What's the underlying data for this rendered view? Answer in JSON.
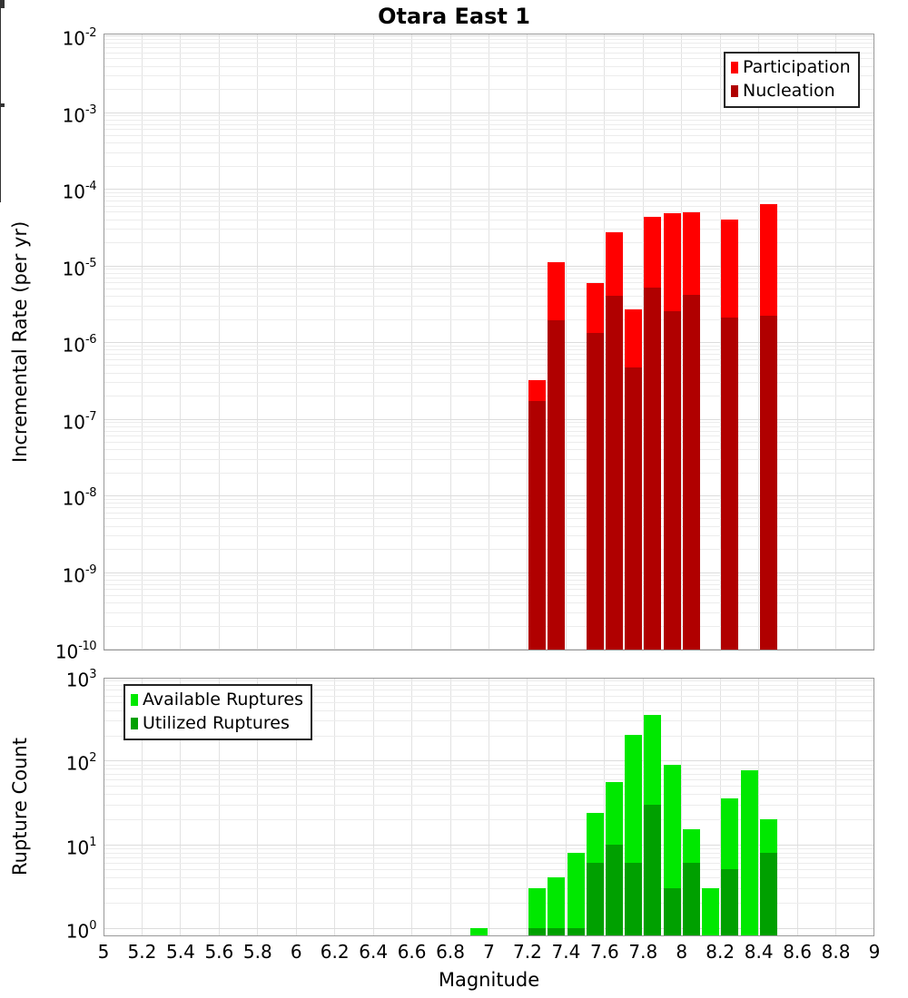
{
  "title": "Otara East 1",
  "xlabel": "Magnitude",
  "x_tick_labels": [
    "5",
    "5.2",
    "5.4",
    "5.6",
    "5.8",
    "6",
    "6.2",
    "6.4",
    "6.6",
    "6.8",
    "7",
    "7.2",
    "7.4",
    "7.6",
    "7.8",
    "8",
    "8.2",
    "8.4",
    "8.6",
    "8.8",
    "9"
  ],
  "chart_data": [
    {
      "type": "bar",
      "title": "Otara East 1",
      "ylabel": "Incremental Rate (per yr)",
      "xlabel": "Magnitude",
      "yscale": "log",
      "ylim": [
        1e-10,
        0.01
      ],
      "xlim": [
        5,
        9
      ],
      "bin_width": 0.1,
      "grid": true,
      "legend_position": "top-right",
      "categories": [
        7.25,
        7.35,
        7.55,
        7.65,
        7.75,
        7.85,
        7.95,
        8.05,
        8.25,
        8.45
      ],
      "series": [
        {
          "name": "Participation",
          "color": "#ff0000",
          "values": [
            3.2e-07,
            1.1e-05,
            5.9e-06,
            2.7e-05,
            2.7e-06,
            4.3e-05,
            4.8e-05,
            4.9e-05,
            4e-05,
            6.3e-05
          ]
        },
        {
          "name": "Nucleation",
          "color": "#b00000",
          "values": [
            1.7e-07,
            1.9e-06,
            1.3e-06,
            4e-06,
            4.6e-07,
            5.1e-06,
            2.5e-06,
            4.1e-06,
            2.1e-06,
            2.2e-06
          ]
        }
      ]
    },
    {
      "type": "bar",
      "title": "",
      "ylabel": "Rupture Count",
      "xlabel": "Magnitude",
      "yscale": "log",
      "ylim": [
        1,
        1000
      ],
      "xlim": [
        5,
        9
      ],
      "bin_width": 0.1,
      "grid": true,
      "legend_position": "top-left",
      "categories": [
        6.95,
        7.25,
        7.35,
        7.45,
        7.55,
        7.65,
        7.75,
        7.85,
        7.95,
        8.05,
        8.15,
        8.25,
        8.35,
        8.45
      ],
      "series": [
        {
          "name": "Available Ruptures",
          "color": "#00e800",
          "values": [
            1,
            3,
            4,
            8,
            24,
            55,
            205,
            350,
            90,
            15,
            3,
            35,
            76,
            20
          ]
        },
        {
          "name": "Utilized Ruptures",
          "color": "#00a000",
          "values": [
            0,
            1,
            1,
            1,
            6,
            10,
            6,
            30,
            3,
            6,
            0,
            5,
            0,
            8
          ]
        }
      ]
    }
  ]
}
